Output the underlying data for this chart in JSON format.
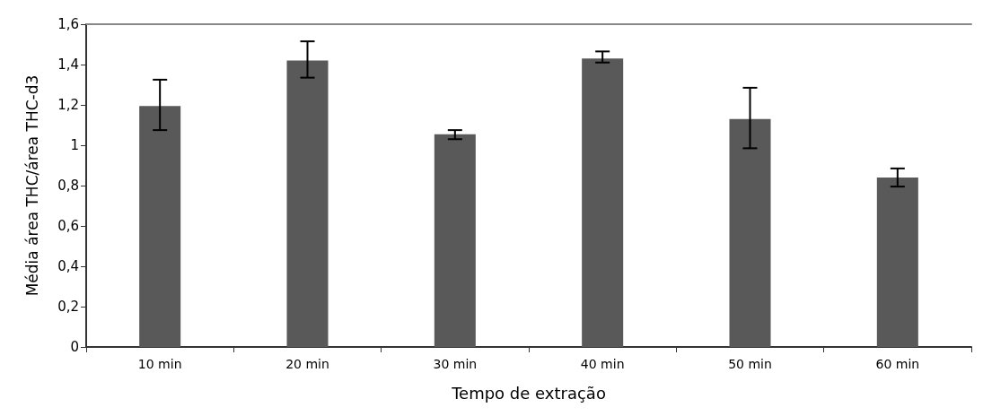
{
  "chart_data": {
    "type": "bar",
    "xlabel": "Tempo de extração",
    "ylabel": "Média área THC/área THC-d3",
    "categories": [
      "10 min",
      "20 min",
      "30 min",
      "40 min",
      "50 min",
      "60 min"
    ],
    "values": [
      1.195,
      1.42,
      1.055,
      1.43,
      1.13,
      0.84
    ],
    "errors": [
      [
        1.075,
        1.325
      ],
      [
        1.335,
        1.515
      ],
      [
        1.03,
        1.075
      ],
      [
        1.41,
        1.465
      ],
      [
        0.985,
        1.285
      ],
      [
        0.795,
        0.885
      ]
    ],
    "color": "#595959",
    "ylim": [
      0,
      1.6
    ],
    "yticks": [
      0,
      {
        "value": 0.2,
        "label": "0,2"
      },
      {
        "value": 0.4,
        "label": "0,4"
      },
      {
        "value": 0.6,
        "label": "0,6"
      },
      {
        "value": 0.8,
        "label": "0,8"
      },
      1,
      {
        "value": 1.2,
        "label": "1,2"
      },
      {
        "value": 1.4,
        "label": "1,4"
      },
      {
        "value": 1.6,
        "label": "1,6"
      }
    ],
    "grid": false
  }
}
